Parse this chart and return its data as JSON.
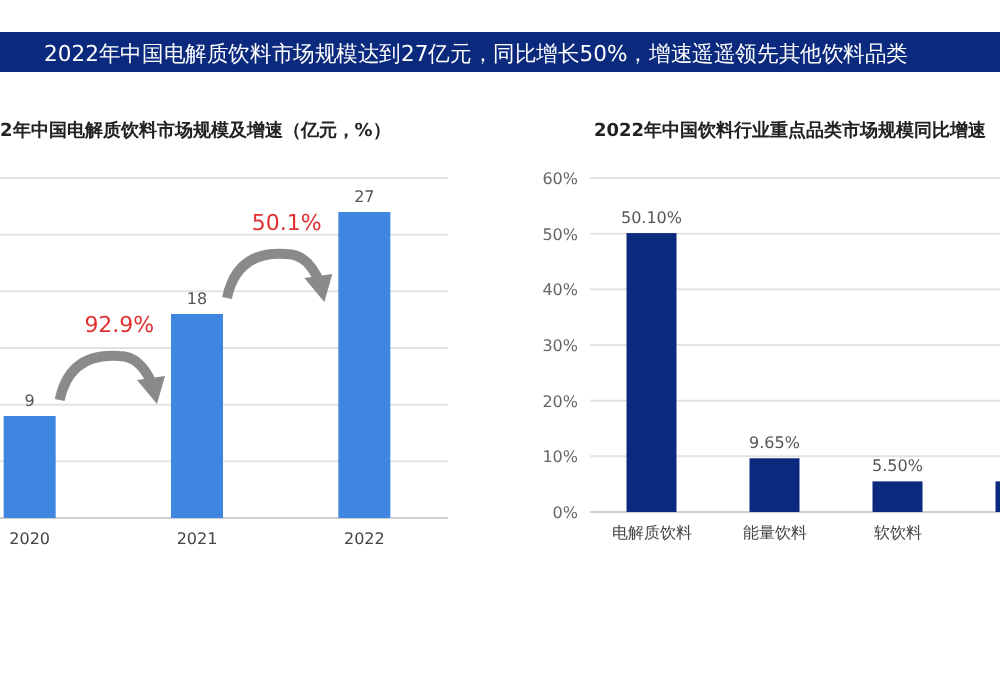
{
  "chart_data": [
    {
      "type": "bar",
      "title": "2022年中国电解质饮料市场规模达到27亿元，同比增长50%，增速遥遥领先其他饮料品类",
      "subtitle": "2年中国电解质饮料市场规模及增速（亿元，%）",
      "categories": [
        "2020",
        "2021",
        "2022"
      ],
      "values": [
        9,
        18,
        27
      ],
      "color": "#3f86e0",
      "data_labels": true,
      "ylim": [
        0,
        30
      ],
      "yticks": [
        {
          "value": 0,
          "label": null
        },
        {
          "value": 5,
          "label": null
        },
        {
          "value": 10,
          "label": null
        },
        {
          "value": 15,
          "label": null
        },
        {
          "value": 20,
          "label": null
        },
        {
          "value": 25,
          "label": null
        },
        {
          "value": 30,
          "label": null
        }
      ],
      "tick_labels": "x",
      "grid": "y",
      "annotations": [
        "92.9%",
        "50.1%"
      ]
    },
    {
      "type": "bar",
      "title": "2022年中国饮料行业重点品类市场规模同比增速",
      "categories": [
        "电解质饮料",
        "能量饮料",
        "软饮料",
        null
      ],
      "values": [
        50.1,
        9.65,
        5.5,
        5.5
      ],
      "value_labels": [
        "50.10%",
        "9.65%",
        "5.50%",
        null
      ],
      "color": "#0b2a7e",
      "ylim": [
        0,
        60
      ],
      "yticks": [
        {
          "value": 0,
          "label": "0%"
        },
        {
          "value": 10,
          "label": "10%"
        },
        {
          "value": 20,
          "label": "20%"
        },
        {
          "value": 30,
          "label": "30%"
        },
        {
          "value": 40,
          "label": "40%"
        },
        {
          "value": 50,
          "label": "50%"
        },
        {
          "value": 60,
          "label": "60%"
        }
      ],
      "grid": "y"
    }
  ]
}
